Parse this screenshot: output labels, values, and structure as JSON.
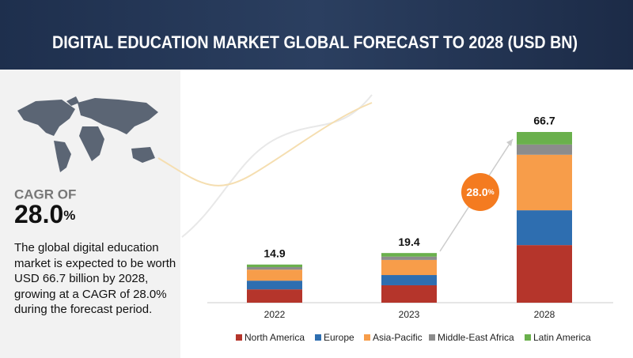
{
  "chart_data": {
    "type": "stacked-bar",
    "title": "DIGITAL EDUCATION MARKET GLOBAL FORECAST TO 2028 (USD BN)",
    "categories": [
      "2022",
      "2023",
      "2028"
    ],
    "totals": [
      14.9,
      19.4,
      66.7
    ],
    "series": [
      {
        "name": "North America",
        "color": "#b5352b",
        "values": [
          5.2,
          6.8,
          22.5
        ]
      },
      {
        "name": "Europe",
        "color": "#2e6eb0",
        "values": [
          3.4,
          4.0,
          13.6
        ]
      },
      {
        "name": "Asia-Pacific",
        "color": "#f79d4a",
        "values": [
          4.3,
          5.9,
          21.7
        ]
      },
      {
        "name": "Middle-East Africa",
        "color": "#8c8c8c",
        "values": [
          1.0,
          1.3,
          4.0
        ]
      },
      {
        "name": "Latin America",
        "color": "#6ab04c",
        "values": [
          1.0,
          1.4,
          4.9
        ]
      }
    ],
    "legend": "bottom",
    "cagr": {
      "label": "CAGR OF",
      "number": "28.0",
      "unit": "%"
    },
    "badge": {
      "number": "28.0",
      "unit": "%"
    },
    "description": "The global digital education market is expected to be worth USD 66.7 billion by 2028, growing at a CAGR of 28.0% during the forecast period."
  }
}
